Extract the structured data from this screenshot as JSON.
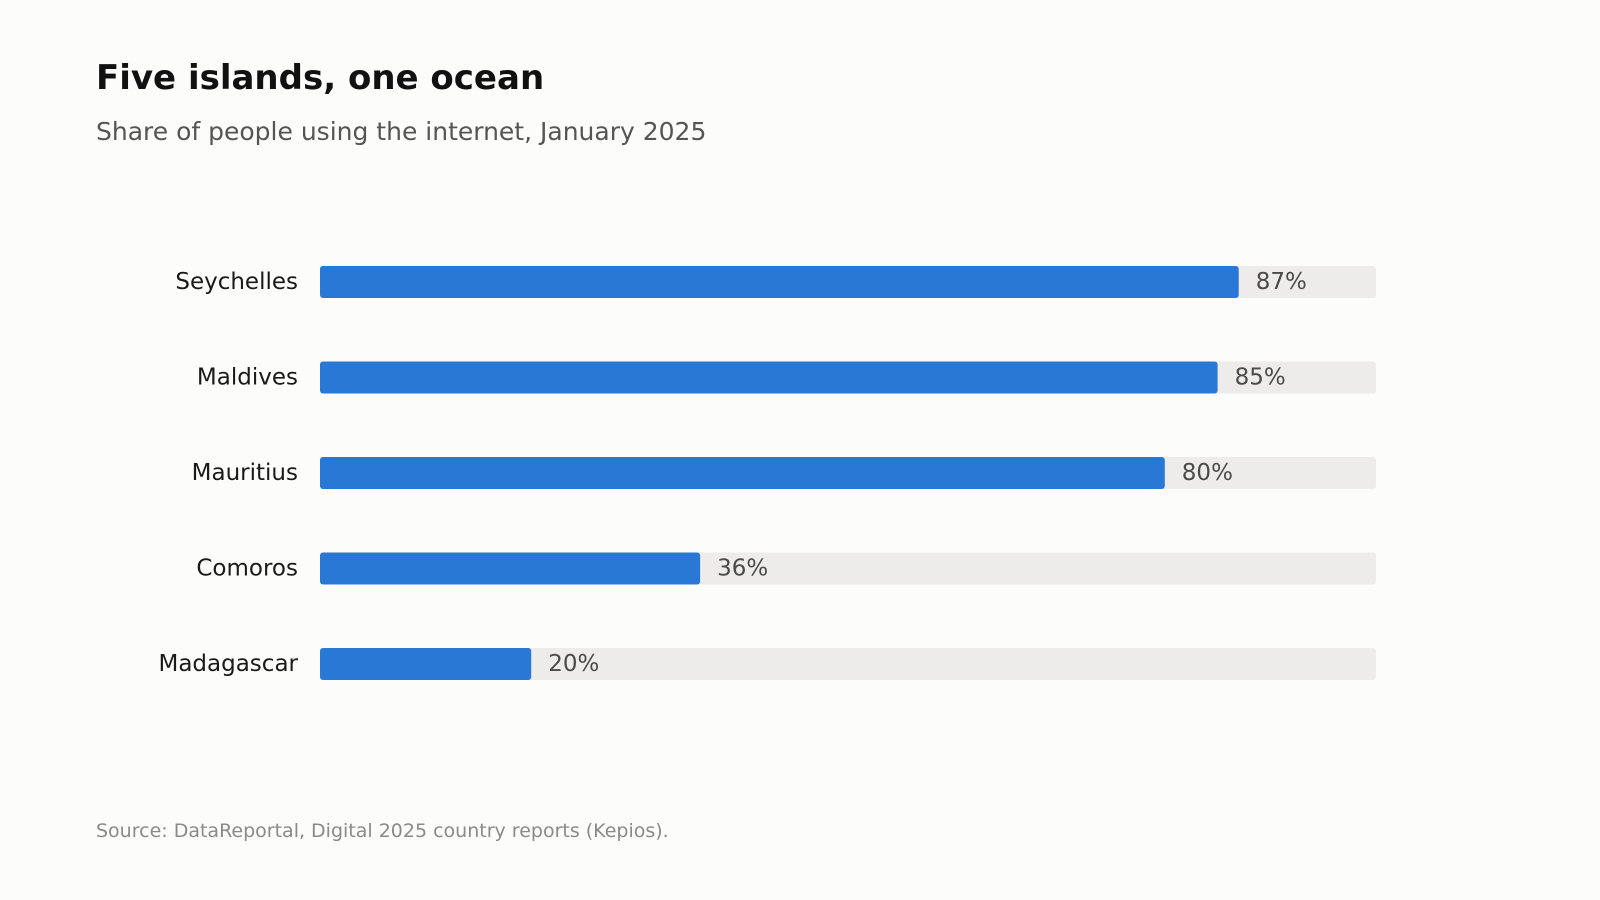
{
  "title": "Five islands, one ocean",
  "subtitle": "Share of people using the internet, January 2025",
  "source": "Source: DataReportal, Digital 2025 country reports (Kepios).",
  "colors": {
    "bar": "#2a78d6",
    "track": "#edecea"
  },
  "chart_data": {
    "type": "bar",
    "orientation": "horizontal",
    "categories": [
      "Seychelles",
      "Maldives",
      "Mauritius",
      "Comoros",
      "Madagascar"
    ],
    "values": [
      87,
      85,
      80,
      36,
      20
    ],
    "value_labels": [
      "87%",
      "85%",
      "80%",
      "36%",
      "20%"
    ],
    "xlim": [
      0,
      100
    ],
    "grid": false,
    "legend": "none"
  }
}
